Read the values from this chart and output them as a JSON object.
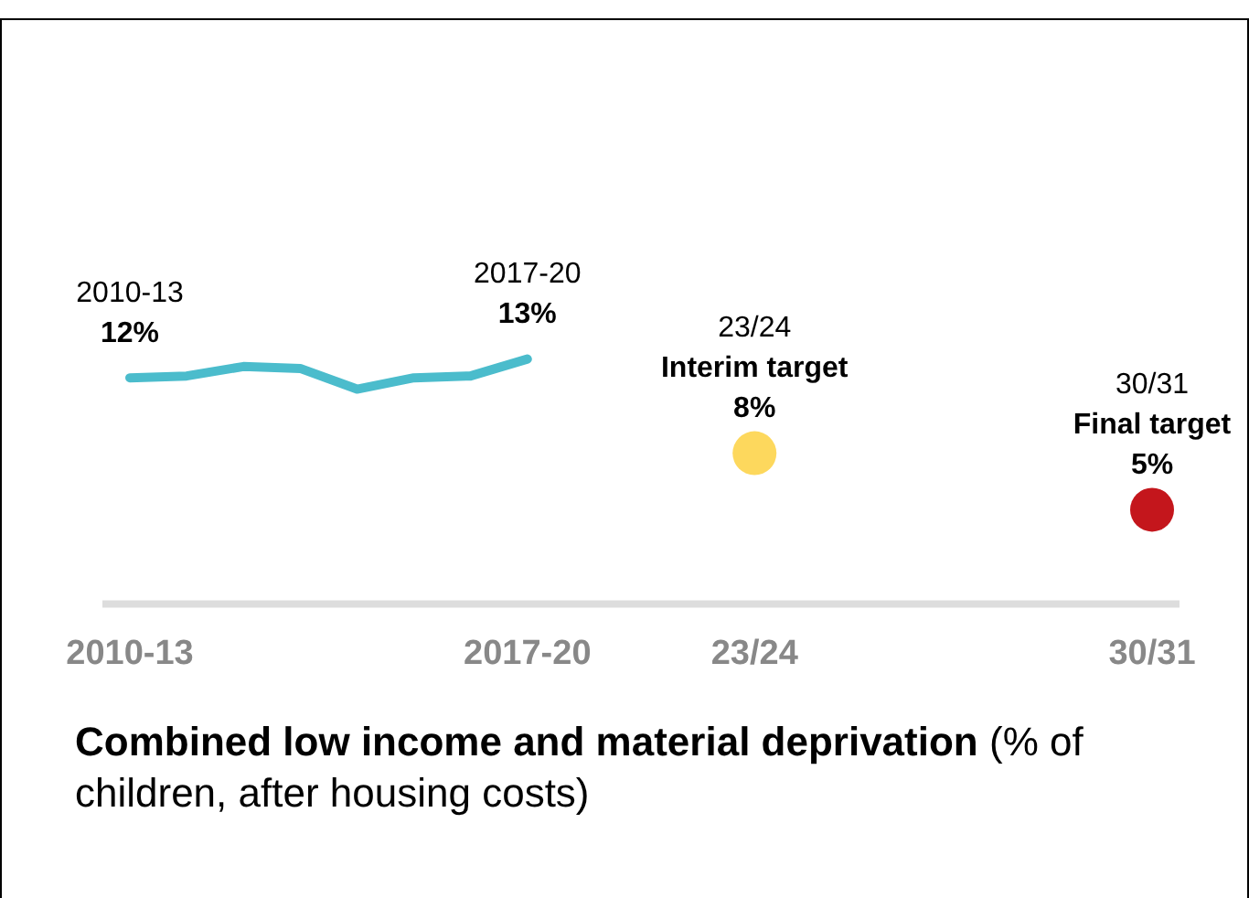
{
  "chart_data": {
    "type": "line",
    "title": "Combined low income and material deprivation",
    "subtitle": "(% of children, after housing costs)",
    "categories": [
      "2010-13",
      null,
      null,
      null,
      null,
      null,
      null,
      "2017-20",
      null,
      null,
      null,
      "23/24",
      null,
      null,
      null,
      null,
      null,
      null,
      "30/31"
    ],
    "tick_labels": "x",
    "grid": false,
    "legend": false,
    "series": [
      {
        "color": "#4bbccc",
        "values": [
          12,
          12.1,
          12.6,
          12.5,
          11.4,
          12.0,
          12.1,
          13,
          null,
          null,
          null,
          null,
          null,
          null,
          null,
          null,
          null,
          null,
          null
        ],
        "value_labels": [
          "12%",
          null,
          null,
          null,
          null,
          null,
          null,
          "13%",
          null,
          null,
          null,
          null,
          null,
          null,
          null,
          null,
          null,
          null,
          null
        ]
      },
      {
        "type": "scatter",
        "marker": "circle",
        "colors": [
          "#fdd85d",
          "#c4161c"
        ],
        "x": [
          "23/24",
          "30/31"
        ],
        "values": [
          8,
          5
        ],
        "value_labels": [
          "8%",
          "5%"
        ]
      }
    ],
    "annotations": [
      {
        "text": "2010-13",
        "x": "2010-13",
        "y": 12
      },
      {
        "text": "2017-20",
        "x": "2017-20",
        "y": 13
      },
      {
        "text": "Interim target",
        "x": "23/24",
        "y": 8
      },
      "23/24",
      {
        "text": "Final target",
        "x": "30/31",
        "y": 5
      },
      "30/31"
    ]
  }
}
